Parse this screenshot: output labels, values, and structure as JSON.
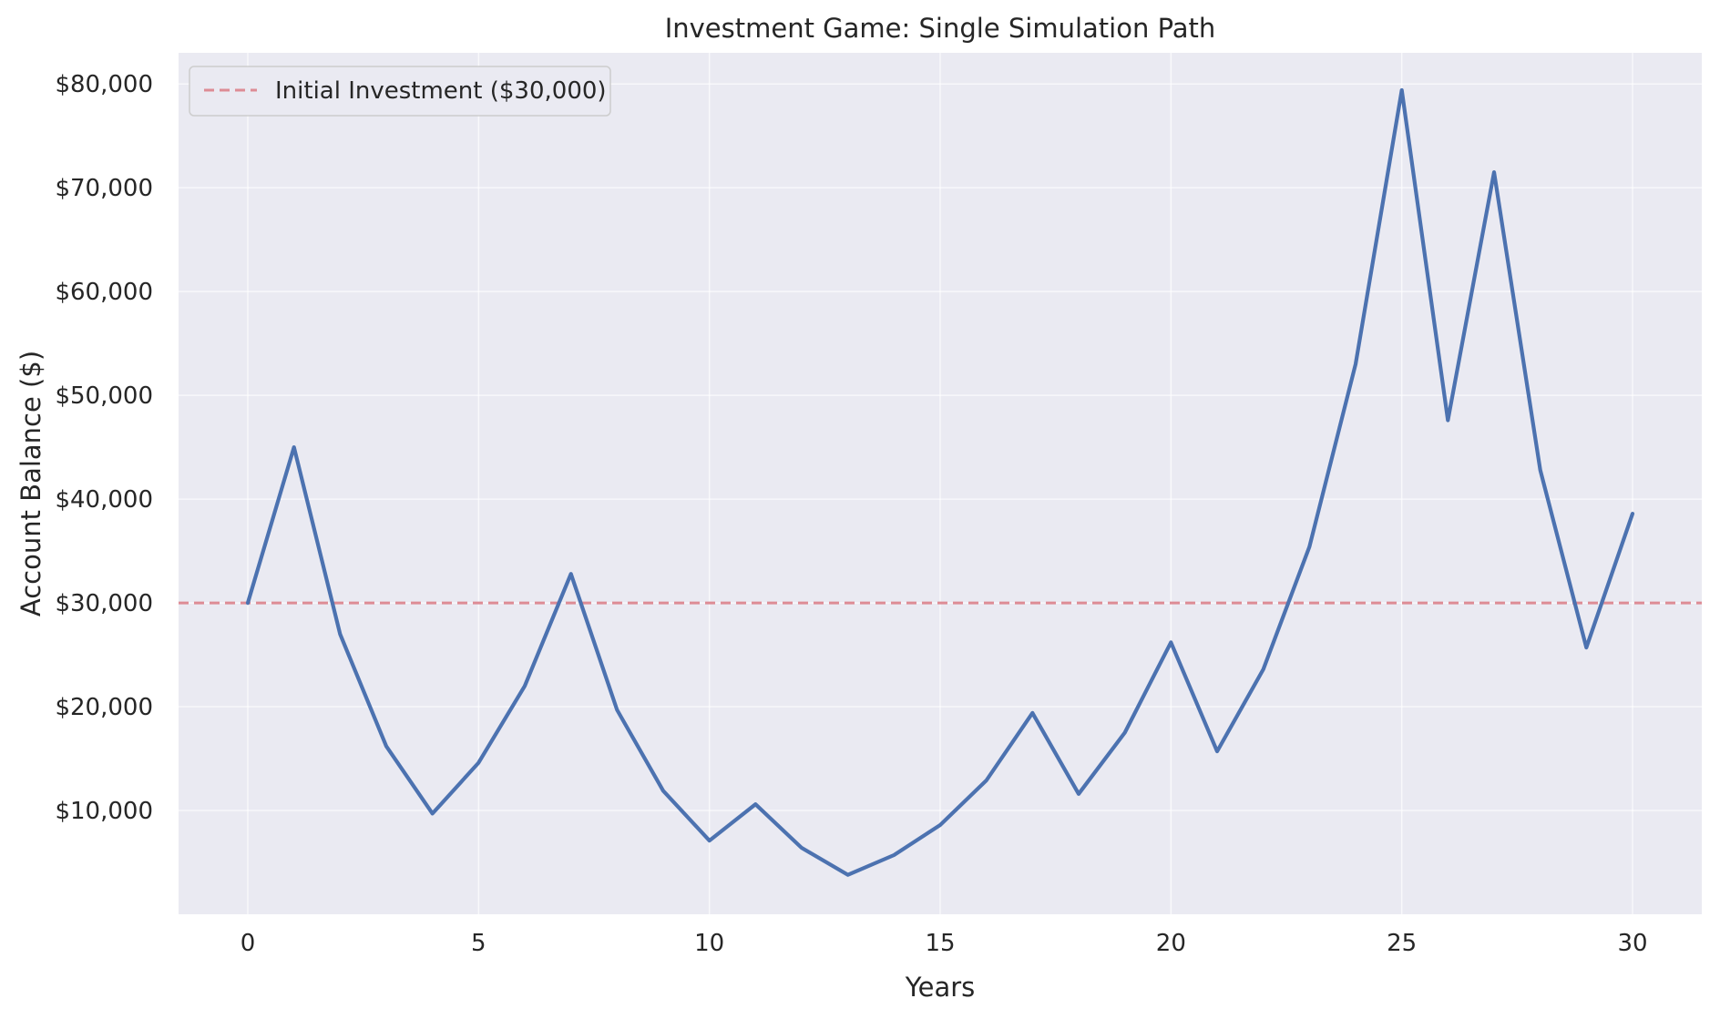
{
  "chart_data": {
    "type": "line",
    "title": "Investment Game: Single Simulation Path",
    "xlabel": "Years",
    "ylabel": "Account Balance ($)",
    "xlim": [
      -1.5,
      31.5
    ],
    "ylim": [
      0,
      83000
    ],
    "grid": true,
    "legend_position": "top-left",
    "x_ticks": [
      0,
      5,
      10,
      15,
      20,
      25,
      30
    ],
    "x_tick_labels": [
      "0",
      "5",
      "10",
      "15",
      "20",
      "25",
      "30"
    ],
    "y_ticks": [
      10000,
      20000,
      30000,
      40000,
      50000,
      60000,
      70000,
      80000
    ],
    "y_tick_labels": [
      "$10,000",
      "$20,000",
      "$30,000",
      "$40,000",
      "$50,000",
      "$60,000",
      "$70,000",
      "$80,000"
    ],
    "x": [
      0,
      1,
      2,
      3,
      4,
      5,
      6,
      7,
      8,
      9,
      10,
      11,
      12,
      13,
      14,
      15,
      16,
      17,
      18,
      19,
      20,
      21,
      22,
      23,
      24,
      25,
      26,
      27,
      28,
      29,
      30
    ],
    "series": [
      {
        "values": [
          30000,
          45000,
          27000,
          16200,
          9700,
          14600,
          22000,
          32800,
          19700,
          11900,
          7100,
          10600,
          6400,
          3800,
          5700,
          8600,
          12900,
          19400,
          11600,
          17500,
          26200,
          15700,
          23600,
          35400,
          53000,
          79400,
          47600,
          71500,
          42800,
          25700,
          38600
        ],
        "color": "#4c72b0"
      }
    ],
    "reference_lines": [
      {
        "name": "Initial Investment ($30,000)",
        "y": 30000,
        "style": "dashed",
        "color": "#dd8c95"
      }
    ],
    "colors": {
      "plot_background": "#eaeaf2",
      "grid": "#ffffff",
      "text": "#262626"
    }
  }
}
